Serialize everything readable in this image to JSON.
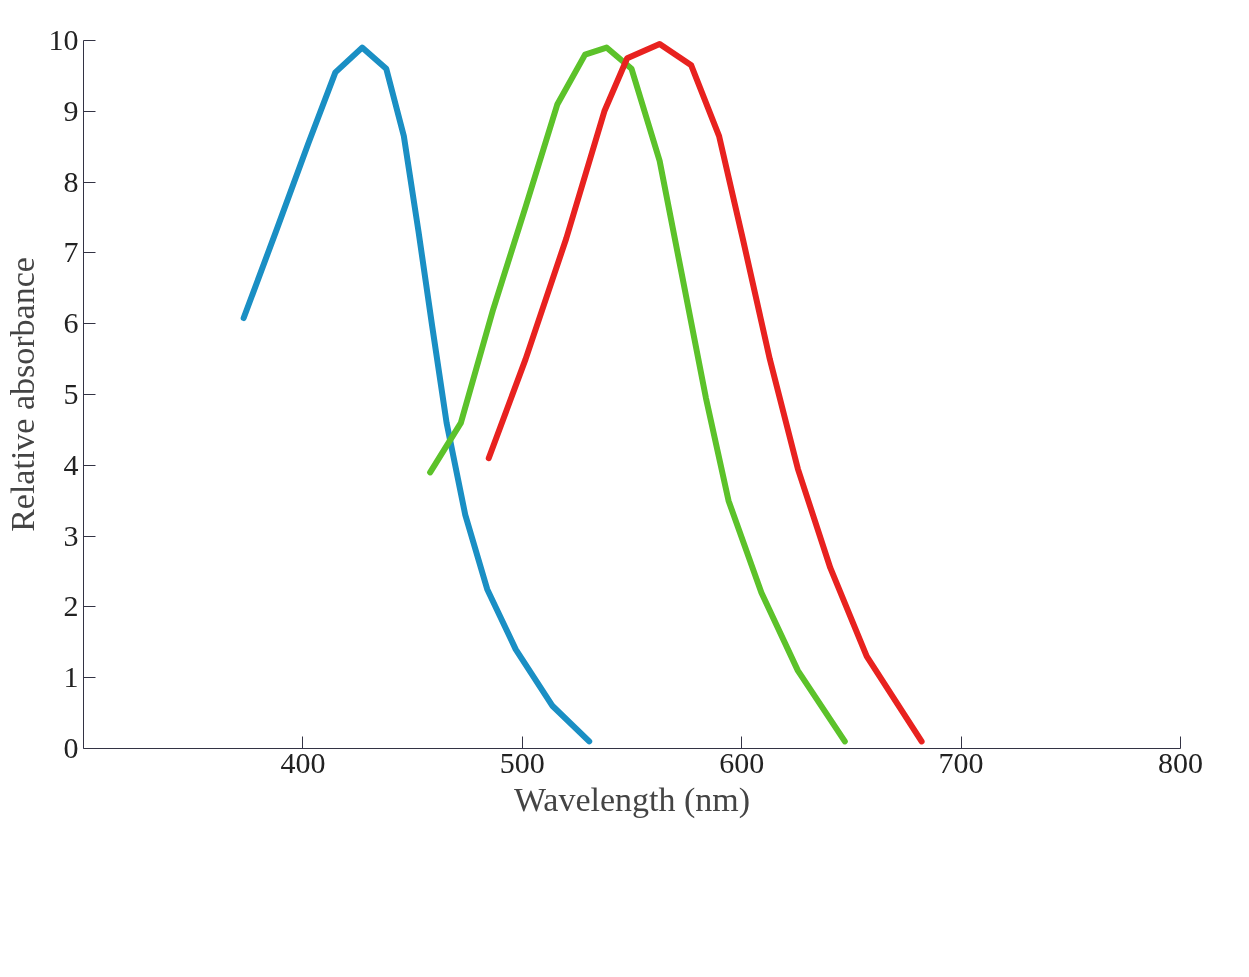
{
  "chart_data": {
    "type": "line",
    "xlabel": "Wavelength (nm)",
    "ylabel": "Relative absorbance",
    "xlim": [
      300,
      800
    ],
    "ylim": [
      0,
      10
    ],
    "xticks": [
      400,
      500,
      600,
      700,
      800
    ],
    "yticks": [
      0,
      1,
      2,
      3,
      4,
      5,
      6,
      7,
      8,
      9,
      10
    ],
    "grid": false,
    "marker": "none",
    "line_style": "solid",
    "series": [
      {
        "color": "#1a8fc4",
        "x": [
          373,
          387.7,
          402.5,
          414.8,
          427,
          438,
          446,
          452.7,
          459,
          465.5,
          474,
          484,
          497,
          513.8,
          530.5
        ],
        "values": [
          6.08,
          7.3,
          8.55,
          9.55,
          9.9,
          9.6,
          8.65,
          7.3,
          5.95,
          4.6,
          3.3,
          2.25,
          1.4,
          0.6,
          0.1
        ]
      },
      {
        "color": "#5cc22a",
        "x": [
          458,
          472,
          486.7,
          501.5,
          516,
          528.6,
          538.4,
          549.8,
          562.6,
          573,
          583.7,
          594,
          609,
          625.6,
          647
        ],
        "values": [
          3.9,
          4.6,
          6.2,
          7.65,
          9.1,
          9.8,
          9.9,
          9.6,
          8.3,
          6.65,
          4.95,
          3.5,
          2.2,
          1.1,
          0.1
        ]
      },
      {
        "color": "#e8221f",
        "x": [
          484.7,
          501.5,
          520,
          537.4,
          547.8,
          562.6,
          577,
          589.7,
          600.5,
          612.8,
          625.6,
          640.4,
          657,
          682
        ],
        "values": [
          4.1,
          5.5,
          7.2,
          9.0,
          9.75,
          9.95,
          9.65,
          8.65,
          7.2,
          5.5,
          3.95,
          2.55,
          1.3,
          0.1
        ]
      }
    ]
  }
}
